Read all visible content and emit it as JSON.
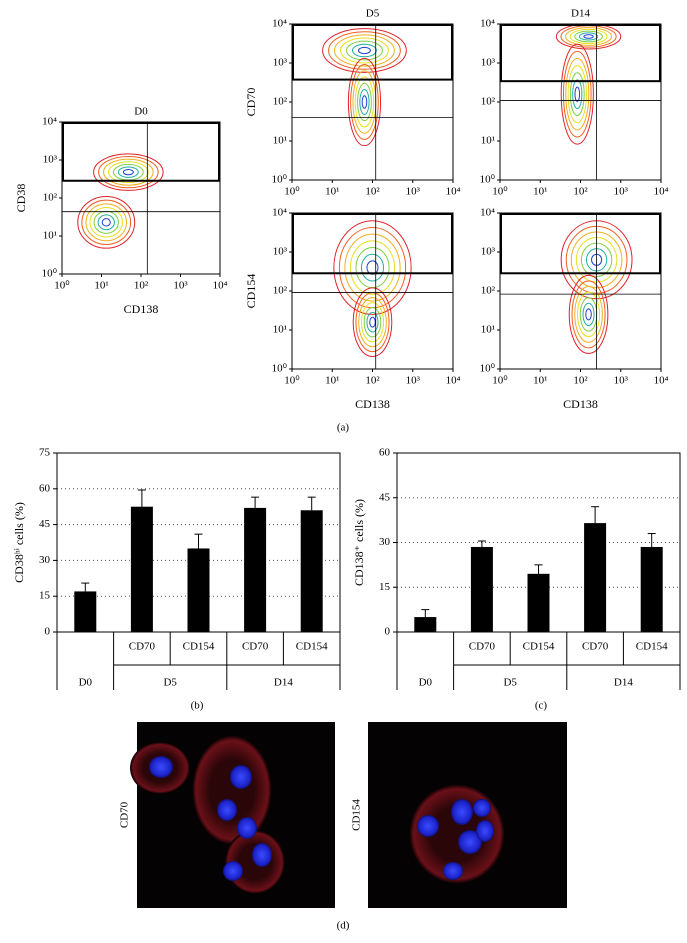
{
  "chart_data": [
    {
      "type": "contour",
      "title": "D0",
      "xlabel": "CD138",
      "ylabel": "CD38",
      "log": true,
      "xlim": [
        1,
        10000
      ],
      "ylim": [
        1,
        10000
      ],
      "xticks": [
        {
          "value": 1,
          "label": "10⁰"
        },
        {
          "value": 10,
          "label": "10¹"
        },
        {
          "value": 100,
          "label": "10²"
        },
        {
          "value": 1000,
          "label": "10³"
        },
        {
          "value": 10000,
          "label": "10⁴"
        }
      ],
      "yticks": [
        {
          "value": 1,
          "label": "10⁰"
        },
        {
          "value": 10,
          "label": "10¹"
        },
        {
          "value": 100,
          "label": "10²"
        },
        {
          "value": 1000,
          "label": "10³"
        },
        {
          "value": 10000,
          "label": "10⁴"
        }
      ]
    },
    {
      "type": "contour",
      "title": "D5",
      "ylabel": "CD70",
      "log": true,
      "xlim": [
        1,
        10000
      ],
      "ylim": [
        1,
        10000
      ],
      "xticks": [
        {
          "value": 1,
          "label": "10⁰"
        },
        {
          "value": 10,
          "label": "10¹"
        },
        {
          "value": 100,
          "label": "10²"
        },
        {
          "value": 1000,
          "label": "10³"
        },
        {
          "value": 10000,
          "label": "10⁴"
        }
      ],
      "yticks": [
        {
          "value": 1,
          "label": "10⁰"
        },
        {
          "value": 10,
          "label": "10¹"
        },
        {
          "value": 100,
          "label": "10²"
        },
        {
          "value": 1000,
          "label": "10³"
        },
        {
          "value": 10000,
          "label": "10⁴"
        }
      ]
    },
    {
      "type": "contour",
      "title": "D14",
      "log": true,
      "xlim": [
        1,
        10000
      ],
      "ylim": [
        1,
        10000
      ],
      "xticks": [
        {
          "value": 1,
          "label": "10⁰"
        },
        {
          "value": 10,
          "label": "10¹"
        },
        {
          "value": 100,
          "label": "10²"
        },
        {
          "value": 1000,
          "label": "10³"
        },
        {
          "value": 10000,
          "label": "10⁴"
        }
      ],
      "yticks": [
        {
          "value": 1,
          "label": "10⁰"
        },
        {
          "value": 10,
          "label": "10¹"
        },
        {
          "value": 100,
          "label": "10²"
        },
        {
          "value": 1000,
          "label": "10³"
        },
        {
          "value": 10000,
          "label": "10⁴"
        }
      ]
    },
    {
      "type": "contour",
      "xlabel": "CD138",
      "ylabel": "CD154",
      "log": true,
      "xlim": [
        1,
        10000
      ],
      "ylim": [
        1,
        10000
      ],
      "xticks": [
        {
          "value": 1,
          "label": "10⁰"
        },
        {
          "value": 10,
          "label": "10¹"
        },
        {
          "value": 100,
          "label": "10²"
        },
        {
          "value": 1000,
          "label": "10³"
        },
        {
          "value": 10000,
          "label": "10⁴"
        }
      ],
      "yticks": [
        {
          "value": 1,
          "label": "10⁰"
        },
        {
          "value": 10,
          "label": "10¹"
        },
        {
          "value": 100,
          "label": "10²"
        },
        {
          "value": 1000,
          "label": "10³"
        },
        {
          "value": 10000,
          "label": "10⁴"
        }
      ]
    },
    {
      "type": "contour",
      "xlabel": "CD138",
      "log": true,
      "xlim": [
        1,
        10000
      ],
      "ylim": [
        1,
        10000
      ],
      "xticks": [
        {
          "value": 1,
          "label": "10⁰"
        },
        {
          "value": 10,
          "label": "10¹"
        },
        {
          "value": 100,
          "label": "10²"
        },
        {
          "value": 1000,
          "label": "10³"
        },
        {
          "value": 10000,
          "label": "10⁴"
        }
      ],
      "yticks": [
        {
          "value": 1,
          "label": "10⁰"
        },
        {
          "value": 10,
          "label": "10¹"
        },
        {
          "value": 100,
          "label": "10²"
        },
        {
          "value": 1000,
          "label": "10³"
        },
        {
          "value": 10000,
          "label": "10⁴"
        }
      ]
    },
    {
      "type": "bar",
      "ylabel": "CD38ʰⁱ cells (%)",
      "categories": [
        null,
        "CD70",
        "CD154",
        "CD70",
        "CD154"
      ],
      "groups": [
        {
          "name": "D0",
          "size": 1
        },
        {
          "name": "D5",
          "size": 2
        },
        {
          "name": "D14",
          "size": 2
        }
      ],
      "values": [
        17,
        52.5,
        35,
        52,
        51
      ],
      "errors": [
        3.5,
        7,
        6,
        4.5,
        5.5
      ],
      "color": "#000000",
      "ylim": [
        0,
        75
      ],
      "yticks": [
        0,
        15,
        30,
        45,
        60,
        75
      ],
      "grid": true
    },
    {
      "type": "bar",
      "ylabel": "CD138⁺ cells (%)",
      "categories": [
        null,
        "CD70",
        "CD154",
        "CD70",
        "CD154"
      ],
      "groups": [
        {
          "name": "D0",
          "size": 1
        },
        {
          "name": "D5",
          "size": 2
        },
        {
          "name": "D14",
          "size": 2
        }
      ],
      "values": [
        5,
        28.5,
        19.5,
        36.5,
        28.5
      ],
      "errors": [
        2.5,
        2,
        3,
        5.5,
        4.5
      ],
      "color": "#000000",
      "ylim": [
        0,
        60
      ],
      "yticks": [
        0,
        15,
        30,
        45,
        60
      ],
      "grid": true
    }
  ],
  "panel_labels": [
    "(a)",
    "(b)",
    "(c)",
    "(d)"
  ],
  "images": [
    {
      "label": "CD70"
    },
    {
      "label": "CD154"
    }
  ]
}
